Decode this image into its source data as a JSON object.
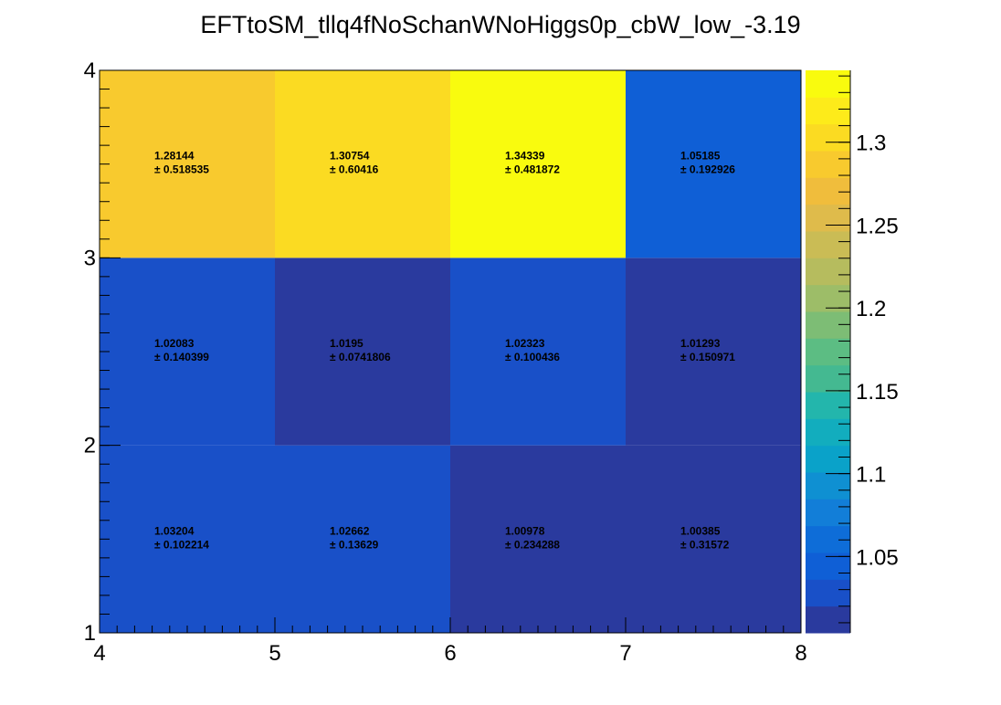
{
  "chart_data": {
    "type": "heatmap",
    "title": "EFTtoSM_tllq4fNoSchanWNoHiggs0p_cbW_low_-3.19",
    "x_edges": [
      4,
      5,
      6,
      7,
      8
    ],
    "y_edges": [
      1,
      2,
      3,
      4
    ],
    "xlim": [
      4,
      8
    ],
    "ylim": [
      1,
      4
    ],
    "x_ticks": [
      "4",
      "5",
      "6",
      "7",
      "8"
    ],
    "y_ticks": [
      "1",
      "2",
      "3",
      "4"
    ],
    "z_range": [
      1.0039,
      1.3434
    ],
    "colorbar_ticks": [
      "1.05",
      "1.1",
      "1.15",
      "1.2",
      "1.25",
      "1.3"
    ],
    "colorbar_tick_values": [
      1.05,
      1.1,
      1.15,
      1.2,
      1.25,
      1.3
    ],
    "palette": [
      "#2a3a9e",
      "#1950c8",
      "#0f5fd6",
      "#0e6dd8",
      "#127ed8",
      "#0f90d2",
      "#0aa2c9",
      "#12adbe",
      "#23b6ac",
      "#44b991",
      "#5cbd83",
      "#7dbd75",
      "#9dbd68",
      "#b6bc5e",
      "#cabc55",
      "#dfbb4b",
      "#f0bd3c",
      "#f8ca2e",
      "#fbdb22",
      "#fdeb1a",
      "#f9fb0e"
    ],
    "cells": [
      {
        "x": 4.5,
        "y": 1.5,
        "value": "1.03204",
        "error": "± 0.102214",
        "z": 1.03204
      },
      {
        "x": 5.5,
        "y": 1.5,
        "value": "1.02662",
        "error": "± 0.13629",
        "z": 1.02662
      },
      {
        "x": 6.5,
        "y": 1.5,
        "value": "1.00978",
        "error": "± 0.234288",
        "z": 1.00978
      },
      {
        "x": 7.5,
        "y": 1.5,
        "value": "1.00385",
        "error": "± 0.31572",
        "z": 1.00385
      },
      {
        "x": 4.5,
        "y": 2.5,
        "value": "1.02083",
        "error": "± 0.140399",
        "z": 1.02083
      },
      {
        "x": 5.5,
        "y": 2.5,
        "value": "1.0195",
        "error": "± 0.0741806",
        "z": 1.0195
      },
      {
        "x": 6.5,
        "y": 2.5,
        "value": "1.02323",
        "error": "± 0.100436",
        "z": 1.02323
      },
      {
        "x": 7.5,
        "y": 2.5,
        "value": "1.01293",
        "error": "± 0.150971",
        "z": 1.01293
      },
      {
        "x": 4.5,
        "y": 3.5,
        "value": "1.28144",
        "error": "± 0.518535",
        "z": 1.28144
      },
      {
        "x": 5.5,
        "y": 3.5,
        "value": "1.30754",
        "error": "± 0.60416",
        "z": 1.30754
      },
      {
        "x": 6.5,
        "y": 3.5,
        "value": "1.34339",
        "error": "± 0.481872",
        "z": 1.34339
      },
      {
        "x": 7.5,
        "y": 3.5,
        "value": "1.05185",
        "error": "± 0.192926",
        "z": 1.05185
      }
    ]
  }
}
